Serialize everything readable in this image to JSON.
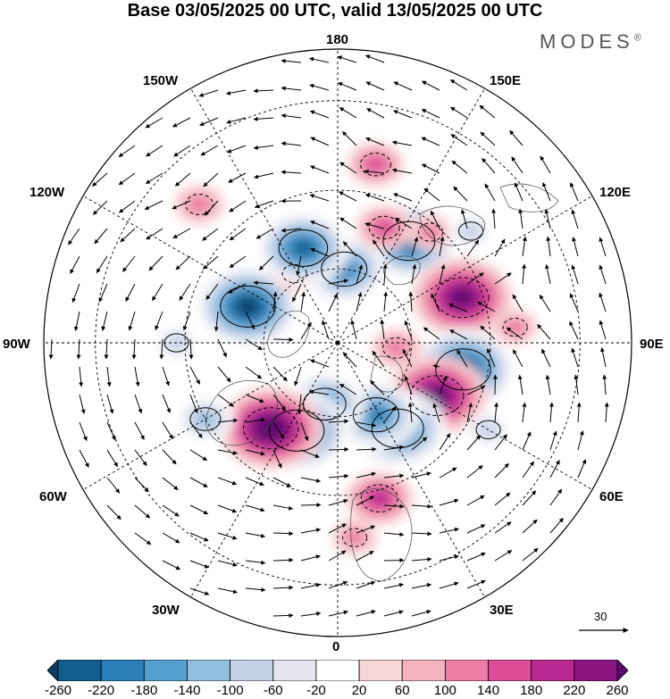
{
  "title": "Base 03/05/2025 00 UTC, valid 13/05/2025 00 UTC",
  "brand": "MODES",
  "brand_mark": "®",
  "longitude_labels": {
    "top": "180",
    "bottom": "0",
    "left": "90W",
    "right": "90E",
    "top_left": "150W",
    "top_right": "150E",
    "upper_left": "120W",
    "upper_right": "120E",
    "lower_left": "60W",
    "lower_right": "60E",
    "bottom_left": "30W",
    "bottom_right": "30E"
  },
  "vector_scale": {
    "label": "30"
  },
  "colorbar": {
    "ticks": [
      "-260",
      "-220",
      "-180",
      "-140",
      "-100",
      "-60",
      "-20",
      "20",
      "60",
      "100",
      "140",
      "180",
      "220",
      "260"
    ],
    "colors": [
      "#0d3b66",
      "#135e8f",
      "#2b7fb8",
      "#56a0cf",
      "#92bedf",
      "#c3d2e8",
      "#e4e5f1",
      "#ffffff",
      "#f8d7d9",
      "#f4b3bd",
      "#ec7ea5",
      "#dc4e99",
      "#b92790",
      "#8b1483",
      "#5c0a6e"
    ]
  },
  "anomalies": [
    {
      "lon": 145,
      "colat": 33,
      "value": -240
    },
    {
      "lon": 175,
      "colat": 20,
      "value": -200
    },
    {
      "lon": 140,
      "colat": 38,
      "value": 60
    },
    {
      "lon": 110,
      "colat": 35,
      "value": 250
    },
    {
      "lon": 78,
      "colat": 34,
      "value": -260
    },
    {
      "lon": 158,
      "colat": 33,
      "value": 100
    },
    {
      "lon": 85,
      "colat": 16,
      "value": 80
    },
    {
      "lon": 62,
      "colat": 30,
      "value": 250
    },
    {
      "lon": 35,
      "colat": 28,
      "value": -240
    },
    {
      "lon": 28,
      "colat": 22,
      "value": -200
    },
    {
      "lon": 15,
      "colat": 42,
      "value": 140
    },
    {
      "lon": 348,
      "colat": 17,
      "value": -180
    },
    {
      "lon": 335,
      "colat": 26,
      "value": -260
    },
    {
      "lon": 322,
      "colat": 29,
      "value": 260
    },
    {
      "lon": 248,
      "colat": 26,
      "value": -260
    },
    {
      "lon": 212,
      "colat": 22,
      "value": 60
    },
    {
      "lon": 200,
      "colat": 27,
      "value": -220
    },
    {
      "lon": 168,
      "colat": 47,
      "value": 100
    },
    {
      "lon": 270,
      "colat": 42,
      "value": -60
    },
    {
      "lon": 300,
      "colat": 40,
      "value": -100
    },
    {
      "lon": 225,
      "colat": 50,
      "value": 80
    },
    {
      "lon": 5,
      "colat": 50,
      "value": 60
    },
    {
      "lon": 60,
      "colat": 45,
      "value": -60
    },
    {
      "lon": 95,
      "colat": 46,
      "value": 60
    },
    {
      "lon": 130,
      "colat": 45,
      "value": -60
    }
  ]
}
